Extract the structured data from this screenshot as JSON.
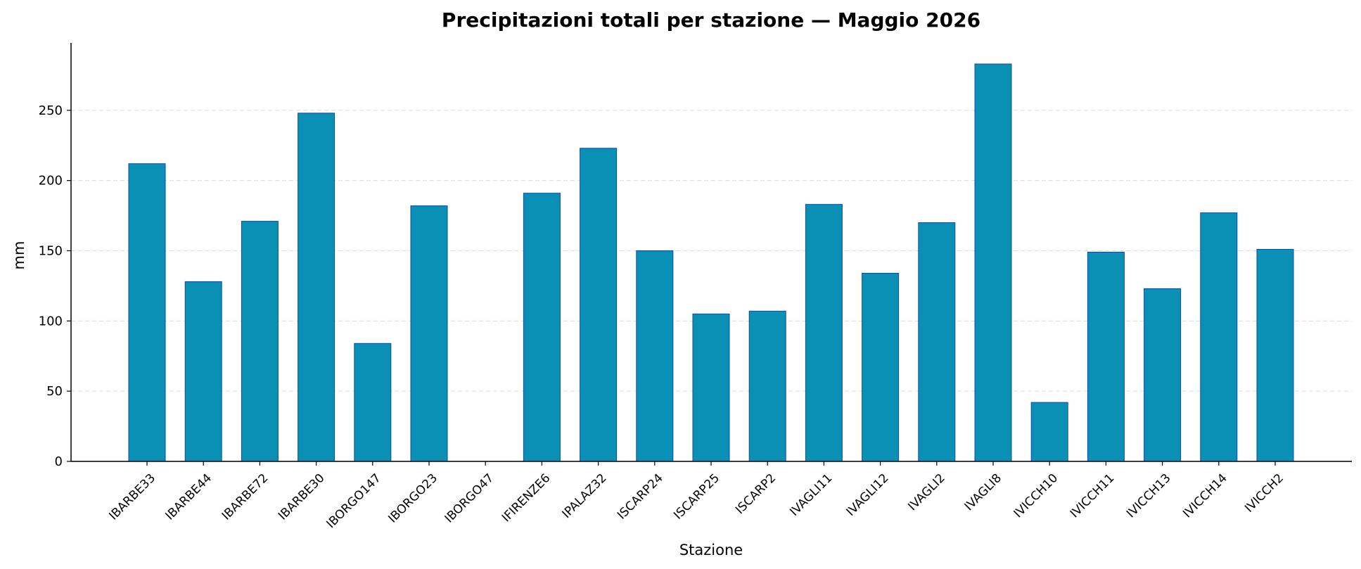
{
  "chart_data": {
    "type": "bar",
    "title": "Precipitazioni totali per stazione — Maggio 2026",
    "xlabel": "Stazione",
    "ylabel": "mm",
    "categories": [
      "IBARBE33",
      "IBARBE44",
      "IBARBE72",
      "IBARBE30",
      "IBORGO147",
      "IBORGO23",
      "IBORGO47",
      "IFIRENZE6",
      "IPALAZ32",
      "ISCARP24",
      "ISCARP25",
      "ISCARP2",
      "IVAGLI11",
      "IVAGLI12",
      "IVAGLI2",
      "IVAGLI8",
      "IVICCH10",
      "IVICCH11",
      "IVICCH13",
      "IVICCH14",
      "IVICCH2"
    ],
    "values": [
      212,
      128,
      171,
      248,
      84,
      182,
      0,
      191,
      223,
      150,
      105,
      107,
      183,
      134,
      170,
      283,
      42,
      149,
      123,
      177,
      151
    ],
    "ylim": [
      0,
      298
    ],
    "yticks": [
      0,
      50,
      100,
      150,
      200,
      250
    ],
    "grid": true,
    "colors": {
      "bar_fill": "#0a8fb5",
      "bar_edge": "#0d4f9c",
      "grid": "#dcdcdc",
      "axis": "#000000"
    }
  }
}
